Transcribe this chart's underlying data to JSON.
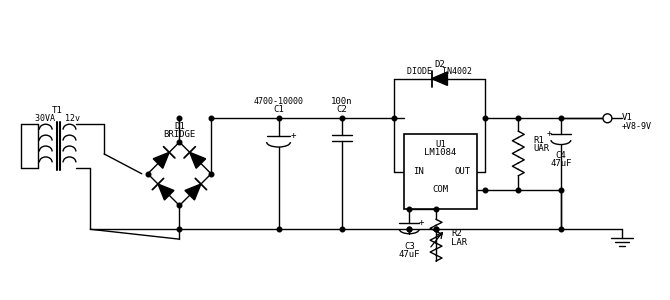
{
  "bg_color": "#ffffff",
  "components": {
    "T1": {
      "label1": "T1",
      "label2": "30VA  12v"
    },
    "D1": {
      "label1": "D1",
      "label2": "BRIDGE"
    },
    "C1": {
      "label1": "C1",
      "label2": "4700-10000"
    },
    "C2": {
      "label1": "C2",
      "label2": "100n"
    },
    "C3": {
      "label1": "C3",
      "label2": "47uF"
    },
    "R2": {
      "label1": "R2",
      "label2": "LAR"
    },
    "U1": {
      "label1": "U1",
      "label2": "LM1084",
      "pin_in": "IN",
      "pin_out": "OUT",
      "pin_com": "COM"
    },
    "D2": {
      "label1": "D2",
      "label2": "DIODE  IN4002"
    },
    "R1": {
      "label1": "R1",
      "label2": "UAR"
    },
    "C4": {
      "label1": "C4",
      "label2": "47uF"
    },
    "V1": {
      "label1": "V1",
      "label2": "+V8-9V"
    }
  }
}
